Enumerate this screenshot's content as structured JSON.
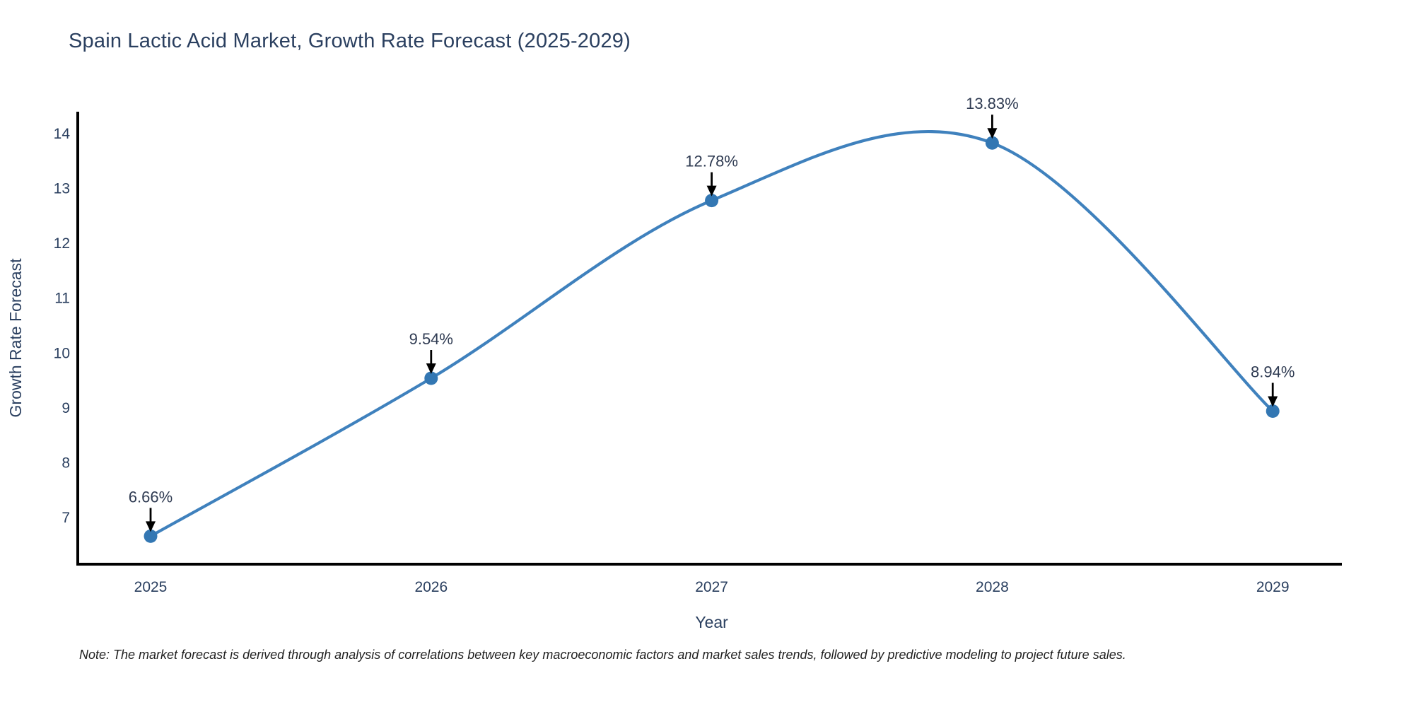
{
  "chart_data": {
    "type": "line",
    "title": "Spain Lactic Acid Market, Growth Rate Forecast (2025-2029)",
    "xlabel": "Year",
    "ylabel": "Growth Rate Forecast",
    "categories": [
      "2025",
      "2026",
      "2027",
      "2028",
      "2029"
    ],
    "series": [
      {
        "name": "Growth Rate Forecast",
        "values": [
          6.66,
          9.54,
          12.78,
          13.83,
          8.94
        ]
      }
    ],
    "point_labels": [
      "6.66%",
      "9.54%",
      "12.78%",
      "13.83%",
      "8.94%"
    ],
    "yticks": [
      7,
      8,
      9,
      10,
      11,
      12,
      13,
      14
    ],
    "ylim": [
      6.15,
      14.42
    ],
    "line_shape": "spline",
    "grid": false,
    "legend_position": "none",
    "colors": {
      "line": "#3f81bd",
      "marker": "#3377b3",
      "axis": "#000000",
      "tick_text": "#2a3f5f",
      "annotation_text": "#2f3b52",
      "annotation_arrow": "#000000",
      "title_text": "#2a3f5f",
      "background": "#ffffff"
    }
  },
  "note": {
    "text": "Note: The market forecast is derived through analysis of correlations between key macroeconomic factors and market sales trends, followed by predictive modeling to project future sales."
  }
}
